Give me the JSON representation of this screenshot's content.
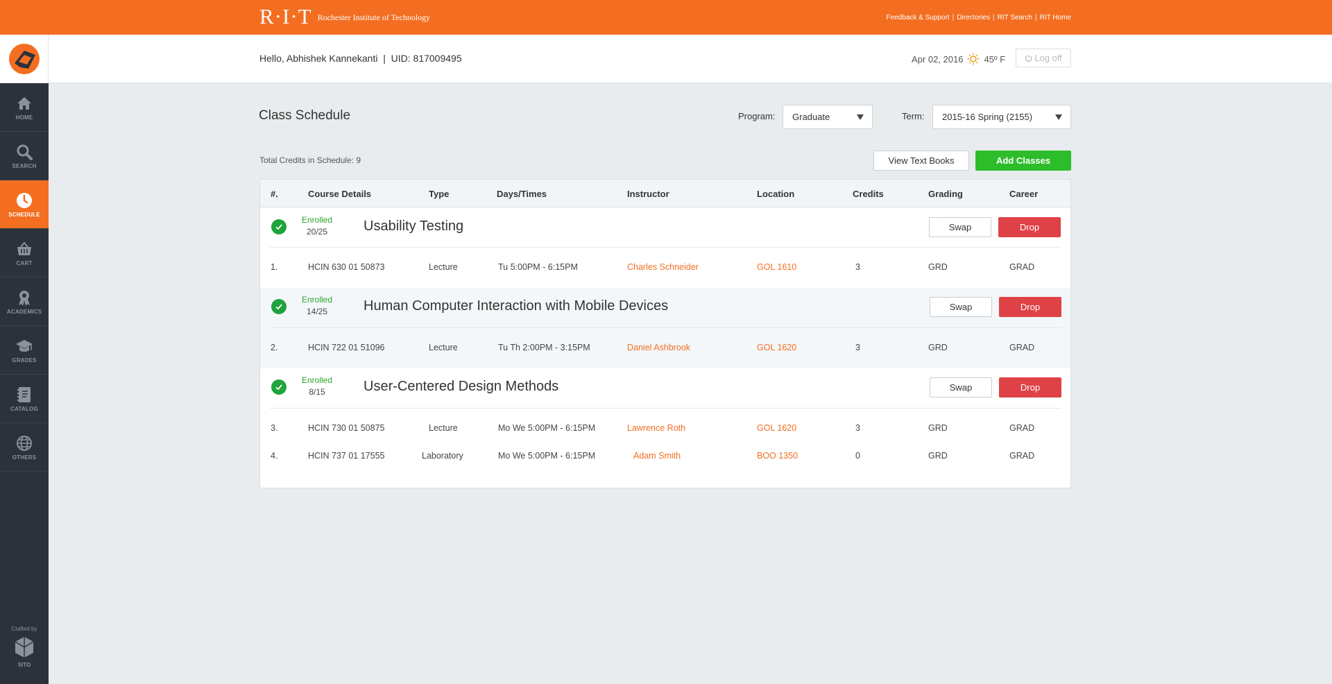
{
  "brand": {
    "mark": "R·I·T",
    "name": "Rochester Institute of Technology"
  },
  "top_links": [
    "Feedback & Support",
    "Directories",
    "RIT Search",
    "RIT Home"
  ],
  "top_links_sep": "|",
  "user": {
    "greeting": "Hello, Abhishek Kannekanti  |  UID: 817009495",
    "date": "Apr 02, 2016",
    "weather_icon": "sun-icon",
    "temperature": "45º F",
    "logoff_label": "Log off"
  },
  "sidebar": {
    "items": [
      {
        "label": "HOME",
        "icon": "home-icon"
      },
      {
        "label": "SEARCH",
        "icon": "search-icon"
      },
      {
        "label": "SCHEDULE",
        "icon": "clock-icon",
        "active": true
      },
      {
        "label": "CART",
        "icon": "basket-icon"
      },
      {
        "label": "ACADEMICS",
        "icon": "ribbon-icon"
      },
      {
        "label": "GRADES",
        "icon": "graduation-cap-icon"
      },
      {
        "label": "CATALOG",
        "icon": "notebook-icon"
      },
      {
        "label": "OTHERS",
        "icon": "globe-icon"
      }
    ],
    "crafted_by": "Crafted by",
    "crafted_name": "SITO"
  },
  "page": {
    "title": "Class Schedule",
    "program_label": "Program:",
    "program_value": "Graduate",
    "term_label": "Term:",
    "term_value": "2015-16 Spring (2155)",
    "total_credits": "Total Credits in Schedule: 9",
    "view_textbooks_label": "View Text Books",
    "add_classes_label": "Add Classes"
  },
  "table": {
    "headers": [
      "#.",
      "Course Details",
      "Type",
      "Days/Times",
      "Instructor",
      "Location",
      "Credits",
      "Grading",
      "Career"
    ],
    "swap_label": "Swap",
    "drop_label": "Drop",
    "courses": [
      {
        "status": "Enrolled",
        "seats": "20/25",
        "name": "Usability Testing",
        "sections": [
          {
            "num": "1.",
            "details": "HCIN 630 01 50873",
            "type": "Lecture",
            "times": "Tu 5:00PM - 6:15PM",
            "instructor": "Charles Schneider",
            "location": "GOL 1610",
            "credits": "3",
            "grading": "GRD",
            "career": "GRAD"
          }
        ]
      },
      {
        "status": "Enrolled",
        "seats": "14/25",
        "name": "Human Computer Interaction with Mobile Devices",
        "sections": [
          {
            "num": "2.",
            "details": "HCIN 722 01 51096",
            "type": "Lecture",
            "times": "Tu Th 2:00PM - 3:15PM",
            "instructor": "Daniel Ashbrook",
            "location": "GOL 1620",
            "credits": "3",
            "grading": "GRD",
            "career": "GRAD"
          }
        ]
      },
      {
        "status": "Enrolled",
        "seats": "8/15",
        "name": "User-Centered Design Methods",
        "sections": [
          {
            "num": "3.",
            "details": "HCIN 730 01 50875",
            "type": "Lecture",
            "times": "Mo We 5:00PM - 6:15PM",
            "instructor": "Lawrence Roth",
            "location": "GOL 1620",
            "credits": "3",
            "grading": "GRD",
            "career": "GRAD"
          },
          {
            "num": "4.",
            "details": "HCIN 737 01 17555",
            "type": "Laboratory",
            "times": "Mo We 5:00PM - 6:15PM",
            "instructor": "Adam Smith",
            "location": "BOO 1350",
            "credits": "0",
            "grading": "GRD",
            "career": "GRAD"
          }
        ]
      }
    ]
  },
  "colors": {
    "accent": "#f36e21",
    "sidebar": "#2b323b",
    "success": "#2ebd2a",
    "danger": "#df4246",
    "enrolled": "#2ba32b"
  }
}
